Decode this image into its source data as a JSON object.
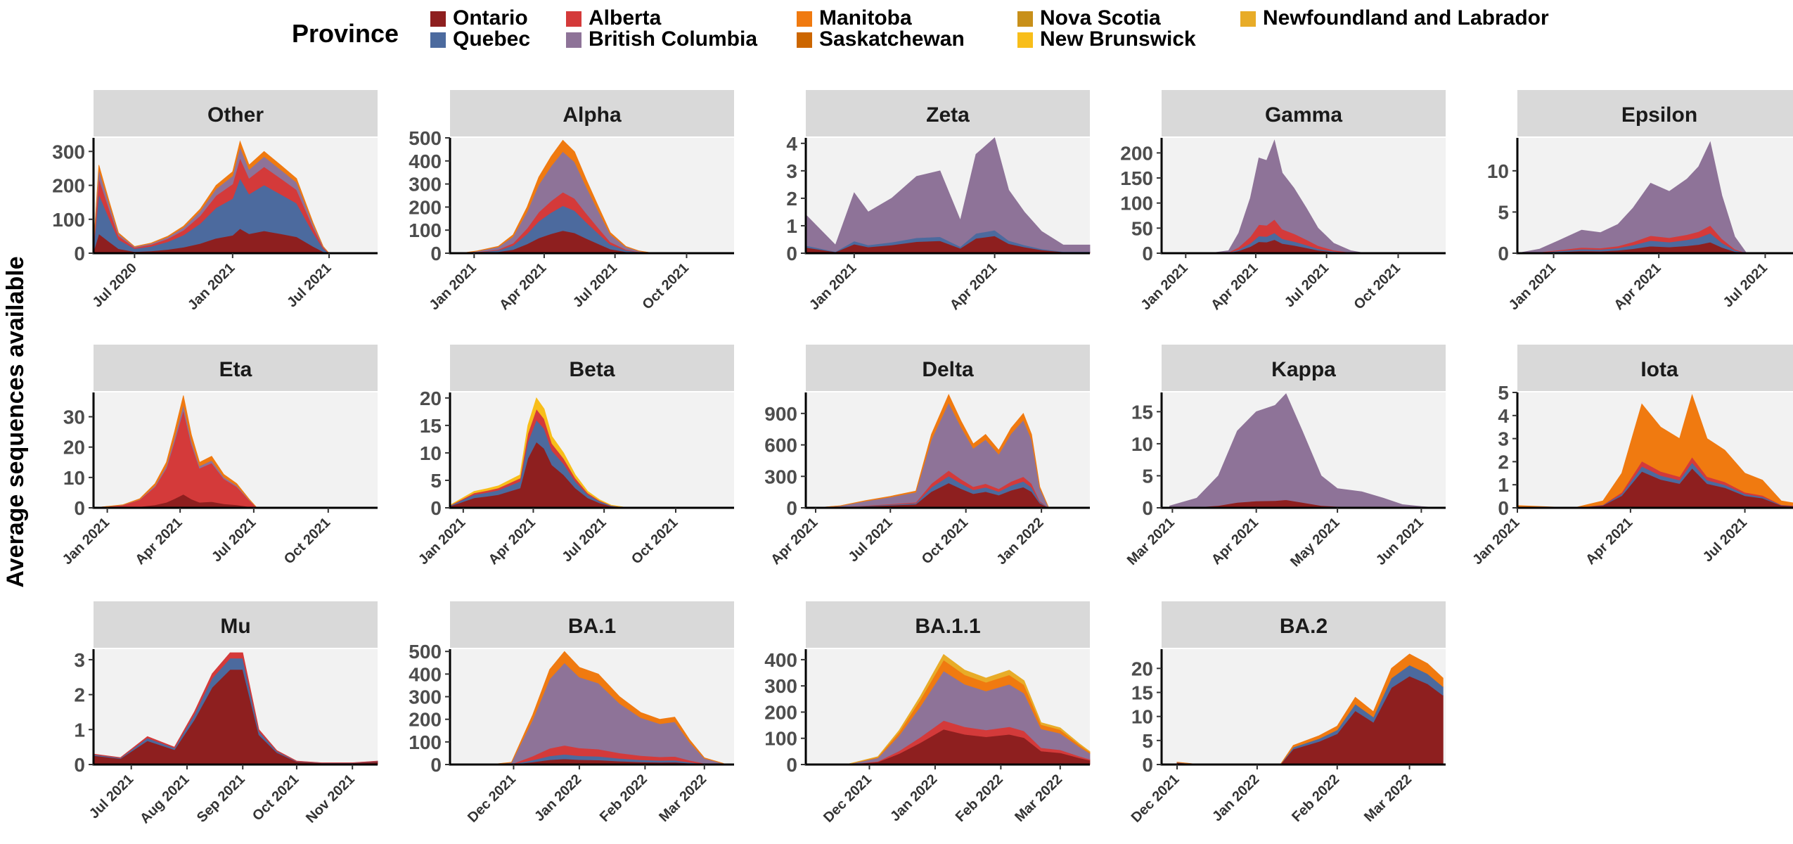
{
  "figure": {
    "ylabel": "Average sequences available",
    "legend_title": "Province",
    "legend_placement": "top",
    "provinces": [
      {
        "name": "Ontario",
        "color": "#8E1F1F"
      },
      {
        "name": "Quebec",
        "color": "#4C6A9E"
      },
      {
        "name": "Alberta",
        "color": "#D43A3A"
      },
      {
        "name": "British Columbia",
        "color": "#8E7398"
      },
      {
        "name": "Manitoba",
        "color": "#F07A10"
      },
      {
        "name": "Saskatchewan",
        "color": "#CC6600"
      },
      {
        "name": "Nova Scotia",
        "color": "#C8901A"
      },
      {
        "name": "New Brunswick",
        "color": "#F8BE1A"
      },
      {
        "name": "Newfoundland and Labrador",
        "color": "#E8AC28"
      }
    ]
  },
  "chart_data": [
    {
      "type": "area",
      "title": "Other",
      "x_start": "2020-04-15",
      "x_end": "2021-09-30",
      "ylim": [
        0,
        340
      ],
      "yticks": [
        0,
        100,
        200,
        300
      ],
      "xticks": [
        {
          "label": "Jul 2020",
          "date": "2020-07-01"
        },
        {
          "label": "Jan 2021",
          "date": "2021-01-01"
        },
        {
          "label": "Jul 2021",
          "date": "2021-07-01"
        }
      ],
      "dates": [
        "2020-04-15",
        "2020-04-25",
        "2020-05-15",
        "2020-06-01",
        "2020-07-01",
        "2020-08-01",
        "2020-09-01",
        "2020-10-01",
        "2020-11-01",
        "2020-12-01",
        "2021-01-01",
        "2021-01-15",
        "2021-02-01",
        "2021-03-01",
        "2021-04-01",
        "2021-05-01",
        "2021-06-01",
        "2021-06-20",
        "2021-07-01"
      ],
      "totals": [
        20,
        260,
        150,
        60,
        20,
        30,
        50,
        80,
        130,
        200,
        240,
        330,
        260,
        300,
        260,
        220,
        90,
        20,
        0
      ],
      "shares": {
        "Ontario": 0.22,
        "Quebec": 0.45,
        "Alberta": 0.18,
        "British Columbia": 0.1,
        "Manitoba": 0.05
      }
    },
    {
      "type": "area",
      "title": "Alpha",
      "x_start": "2020-12-01",
      "x_end": "2021-12-01",
      "ylim": [
        0,
        500
      ],
      "yticks": [
        0,
        100,
        200,
        300,
        400,
        500
      ],
      "xticks": [
        {
          "label": "Jan 2021",
          "date": "2021-01-01"
        },
        {
          "label": "Apr 2021",
          "date": "2021-04-01"
        },
        {
          "label": "Jul 2021",
          "date": "2021-07-01"
        },
        {
          "label": "Oct 2021",
          "date": "2021-10-01"
        }
      ],
      "dates": [
        "2020-12-15",
        "2021-01-05",
        "2021-02-01",
        "2021-02-20",
        "2021-03-10",
        "2021-03-25",
        "2021-04-10",
        "2021-04-25",
        "2021-05-10",
        "2021-05-25",
        "2021-06-10",
        "2021-06-25",
        "2021-07-15",
        "2021-08-01",
        "2021-08-20"
      ],
      "totals": [
        0,
        10,
        30,
        80,
        200,
        330,
        420,
        490,
        440,
        320,
        200,
        90,
        30,
        10,
        0
      ],
      "shares": {
        "Ontario": 0.2,
        "Quebec": 0.22,
        "Alberta": 0.12,
        "British Columbia": 0.36,
        "Manitoba": 0.1
      }
    },
    {
      "type": "area",
      "title": "Zeta",
      "x_start": "2020-12-01",
      "x_end": "2021-06-01",
      "ylim": [
        0,
        4.2
      ],
      "yticks": [
        0,
        1,
        2,
        3,
        4
      ],
      "xticks": [
        {
          "label": "Jan 2021",
          "date": "2021-01-01"
        },
        {
          "label": "Apr 2021",
          "date": "2021-04-01"
        }
      ],
      "dates": [
        "2020-12-01",
        "2020-12-20",
        "2021-01-01",
        "2021-01-10",
        "2021-01-25",
        "2021-02-10",
        "2021-02-25",
        "2021-03-10",
        "2021-03-20",
        "2021-04-01",
        "2021-04-10",
        "2021-04-20",
        "2021-05-01",
        "2021-05-15",
        "2021-06-01"
      ],
      "totals": [
        1.4,
        0.3,
        2.2,
        1.5,
        2.0,
        2.8,
        3.0,
        1.2,
        3.6,
        4.2,
        2.3,
        1.5,
        0.8,
        0.3,
        0.3
      ],
      "shares": {
        "Ontario": 0.15,
        "British Columbia": 0.8,
        "Quebec": 0.05
      }
    },
    {
      "type": "area",
      "title": "Gamma",
      "x_start": "2020-12-01",
      "x_end": "2021-12-01",
      "ylim": [
        0,
        230
      ],
      "yticks": [
        0,
        50,
        100,
        150,
        200
      ],
      "xticks": [
        {
          "label": "Jan 2021",
          "date": "2021-01-01"
        },
        {
          "label": "Apr 2021",
          "date": "2021-04-01"
        },
        {
          "label": "Jul 2021",
          "date": "2021-07-01"
        },
        {
          "label": "Oct 2021",
          "date": "2021-10-01"
        }
      ],
      "dates": [
        "2021-02-01",
        "2021-02-25",
        "2021-03-10",
        "2021-03-25",
        "2021-04-05",
        "2021-04-15",
        "2021-04-25",
        "2021-05-05",
        "2021-05-20",
        "2021-06-05",
        "2021-06-20",
        "2021-07-10",
        "2021-08-01",
        "2021-08-20"
      ],
      "totals": [
        0,
        5,
        40,
        110,
        190,
        185,
        225,
        160,
        130,
        90,
        50,
        20,
        5,
        0
      ],
      "shares": {
        "Ontario": 0.12,
        "Quebec": 0.06,
        "Alberta": 0.12,
        "British Columbia": 0.7
      }
    },
    {
      "type": "area",
      "title": "Epsilon",
      "x_start": "2020-12-01",
      "x_end": "2021-08-01",
      "ylim": [
        0,
        14
      ],
      "yticks": [
        0,
        5,
        10
      ],
      "xticks": [
        {
          "label": "Jan 2021",
          "date": "2021-01-01"
        },
        {
          "label": "Apr 2021",
          "date": "2021-04-01"
        },
        {
          "label": "Jul 2021",
          "date": "2021-07-01"
        }
      ],
      "dates": [
        "2020-12-01",
        "2020-12-20",
        "2021-01-05",
        "2021-01-25",
        "2021-02-10",
        "2021-02-25",
        "2021-03-10",
        "2021-03-25",
        "2021-04-10",
        "2021-04-25",
        "2021-05-05",
        "2021-05-15",
        "2021-05-25",
        "2021-06-05",
        "2021-06-15"
      ],
      "totals": [
        0,
        0.5,
        1.5,
        2.8,
        2.5,
        3.5,
        5.5,
        8.5,
        7.5,
        9.0,
        10.5,
        13.5,
        7.0,
        2.0,
        0
      ],
      "shares": {
        "Ontario": 0.1,
        "Quebec": 0.08,
        "Alberta": 0.07,
        "British Columbia": 0.75
      }
    },
    {
      "type": "area",
      "title": "Eta",
      "x_start": "2020-12-15",
      "x_end": "2021-12-01",
      "ylim": [
        0,
        38
      ],
      "yticks": [
        0,
        10,
        20,
        30
      ],
      "xticks": [
        {
          "label": "Jan 2021",
          "date": "2021-01-01"
        },
        {
          "label": "Apr 2021",
          "date": "2021-04-01"
        },
        {
          "label": "Jul 2021",
          "date": "2021-07-01"
        },
        {
          "label": "Oct 2021",
          "date": "2021-10-01"
        }
      ],
      "dates": [
        "2020-12-15",
        "2021-01-20",
        "2021-02-10",
        "2021-03-01",
        "2021-03-15",
        "2021-03-25",
        "2021-04-05",
        "2021-04-15",
        "2021-04-25",
        "2021-05-10",
        "2021-05-25",
        "2021-06-10",
        "2021-06-25",
        "2021-07-05"
      ],
      "totals": [
        0,
        1,
        3,
        8,
        15,
        25,
        37,
        24,
        15,
        17,
        11,
        8,
        3,
        0
      ],
      "shares": {
        "Ontario": 0.12,
        "Alberta": 0.75,
        "British Columbia": 0.05,
        "Manitoba": 0.08
      }
    },
    {
      "type": "area",
      "title": "Beta",
      "x_start": "2020-12-15",
      "x_end": "2021-12-15",
      "ylim": [
        0,
        21
      ],
      "yticks": [
        0,
        5,
        10,
        15,
        20
      ],
      "xticks": [
        {
          "label": "Jan 2021",
          "date": "2021-01-01"
        },
        {
          "label": "Apr 2021",
          "date": "2021-04-01"
        },
        {
          "label": "Jul 2021",
          "date": "2021-07-01"
        },
        {
          "label": "Oct 2021",
          "date": "2021-10-01"
        }
      ],
      "dates": [
        "2020-12-15",
        "2021-01-15",
        "2021-02-01",
        "2021-02-15",
        "2021-03-01",
        "2021-03-15",
        "2021-03-25",
        "2021-04-05",
        "2021-04-15",
        "2021-04-25",
        "2021-05-10",
        "2021-05-25",
        "2021-06-10",
        "2021-06-25",
        "2021-07-10",
        "2021-08-01"
      ],
      "totals": [
        0.5,
        3,
        3.5,
        4,
        5,
        6,
        15,
        20,
        18,
        13,
        10,
        6,
        3,
        1.5,
        0.5,
        0
      ],
      "shares": {
        "Ontario": 0.6,
        "Quebec": 0.2,
        "Alberta": 0.1,
        "New Brunswick": 0.1
      }
    },
    {
      "type": "area",
      "title": "Delta",
      "x_start": "2021-03-20",
      "x_end": "2022-03-01",
      "ylim": [
        0,
        1100
      ],
      "yticks": [
        0,
        300,
        600,
        900
      ],
      "xticks": [
        {
          "label": "Apr 2021",
          "date": "2021-04-01"
        },
        {
          "label": "Jul 2021",
          "date": "2021-07-01"
        },
        {
          "label": "Oct 2021",
          "date": "2021-10-01"
        },
        {
          "label": "Jan 2022",
          "date": "2022-01-01"
        }
      ],
      "dates": [
        "2021-04-01",
        "2021-05-01",
        "2021-06-01",
        "2021-07-01",
        "2021-08-01",
        "2021-08-20",
        "2021-09-10",
        "2021-09-25",
        "2021-10-10",
        "2021-10-25",
        "2021-11-10",
        "2021-11-25",
        "2021-12-10",
        "2021-12-20",
        "2021-12-30",
        "2022-01-10"
      ],
      "totals": [
        0,
        20,
        70,
        110,
        160,
        700,
        1080,
        830,
        610,
        700,
        550,
        760,
        900,
        700,
        200,
        0
      ],
      "shares": {
        "Ontario": 0.22,
        "Quebec": 0.06,
        "Alberta": 0.05,
        "British Columbia": 0.6,
        "Manitoba": 0.07
      }
    },
    {
      "type": "area",
      "title": "Kappa",
      "x_start": "2021-02-25",
      "x_end": "2021-06-10",
      "ylim": [
        0,
        18
      ],
      "yticks": [
        0,
        5,
        10,
        15
      ],
      "xticks": [
        {
          "label": "Mar 2021",
          "date": "2021-03-01"
        },
        {
          "label": "Apr 2021",
          "date": "2021-04-01"
        },
        {
          "label": "May 2021",
          "date": "2021-05-01"
        },
        {
          "label": "Jun 2021",
          "date": "2021-06-01"
        }
      ],
      "dates": [
        "2021-02-28",
        "2021-03-10",
        "2021-03-18",
        "2021-03-25",
        "2021-04-01",
        "2021-04-08",
        "2021-04-12",
        "2021-04-18",
        "2021-04-25",
        "2021-05-01",
        "2021-05-10",
        "2021-05-18",
        "2021-05-25",
        "2021-06-01",
        "2021-06-08"
      ],
      "totals": [
        0.3,
        1.5,
        5,
        12,
        15,
        16,
        17.8,
        12,
        5,
        3,
        2.5,
        1.5,
        0.5,
        0.2,
        0
      ],
      "shares": {
        "Ontario": 0.07,
        "British Columbia": 0.93
      }
    },
    {
      "type": "area",
      "title": "Iota",
      "x_start": "2021-01-01",
      "x_end": "2021-08-15",
      "ylim": [
        0,
        5
      ],
      "yticks": [
        0,
        1,
        2,
        3,
        4,
        5
      ],
      "xticks": [
        {
          "label": "Jan 2021",
          "date": "2021-01-01"
        },
        {
          "label": "Apr 2021",
          "date": "2021-04-01"
        },
        {
          "label": "Jul 2021",
          "date": "2021-07-01"
        }
      ],
      "dates": [
        "2021-01-01",
        "2021-02-15",
        "2021-03-10",
        "2021-03-25",
        "2021-04-10",
        "2021-04-25",
        "2021-05-10",
        "2021-05-20",
        "2021-06-01",
        "2021-06-15",
        "2021-07-01",
        "2021-07-15",
        "2021-07-30",
        "2021-08-10"
      ],
      "totals": [
        0.1,
        0,
        0.3,
        1.5,
        4.5,
        3.5,
        3.0,
        4.9,
        3.0,
        2.5,
        1.5,
        1.2,
        0.3,
        0.2
      ],
      "shares": {
        "Ontario": 0.35,
        "Quebec": 0.05,
        "Alberta": 0.05,
        "Manitoba": 0.55
      }
    },
    {
      "type": "area",
      "title": "Mu",
      "x_start": "2021-06-10",
      "x_end": "2021-11-15",
      "ylim": [
        0,
        3.3
      ],
      "yticks": [
        0,
        1,
        2,
        3
      ],
      "xticks": [
        {
          "label": "Jul 2021",
          "date": "2021-07-01"
        },
        {
          "label": "Aug 2021",
          "date": "2021-08-01"
        },
        {
          "label": "Sep 2021",
          "date": "2021-09-01"
        },
        {
          "label": "Oct 2021",
          "date": "2021-10-01"
        },
        {
          "label": "Nov 2021",
          "date": "2021-11-01"
        }
      ],
      "dates": [
        "2021-06-10",
        "2021-06-25",
        "2021-07-10",
        "2021-07-25",
        "2021-08-05",
        "2021-08-15",
        "2021-08-25",
        "2021-09-01",
        "2021-09-10",
        "2021-09-20",
        "2021-10-01",
        "2021-10-15",
        "2021-11-01",
        "2021-11-15"
      ],
      "totals": [
        0.3,
        0.2,
        0.8,
        0.5,
        1.5,
        2.6,
        3.2,
        3.2,
        1.0,
        0.4,
        0.1,
        0.05,
        0.05,
        0.1
      ],
      "shares": {
        "Ontario": 0.85,
        "Quebec": 0.1,
        "Alberta": 0.05
      }
    },
    {
      "type": "area",
      "title": "BA.1",
      "x_start": "2021-11-01",
      "x_end": "2022-03-15",
      "ylim": [
        0,
        510
      ],
      "yticks": [
        0,
        100,
        200,
        300,
        400,
        500
      ],
      "xticks": [
        {
          "label": "Dec 2021",
          "date": "2021-12-01"
        },
        {
          "label": "Jan 2022",
          "date": "2022-01-01"
        },
        {
          "label": "Feb 2022",
          "date": "2022-02-01"
        },
        {
          "label": "Mar 2022",
          "date": "2022-03-01"
        }
      ],
      "dates": [
        "2021-11-20",
        "2021-11-30",
        "2021-12-10",
        "2021-12-18",
        "2021-12-25",
        "2022-01-01",
        "2022-01-10",
        "2022-01-20",
        "2022-01-30",
        "2022-02-08",
        "2022-02-15",
        "2022-02-22",
        "2022-03-01",
        "2022-03-10"
      ],
      "totals": [
        0,
        10,
        220,
        420,
        500,
        430,
        400,
        300,
        230,
        200,
        210,
        110,
        30,
        5
      ],
      "shares": {
        "Ontario": 0.05,
        "Quebec": 0.04,
        "Alberta": 0.08,
        "British Columbia": 0.73,
        "Manitoba": 0.1
      }
    },
    {
      "type": "area",
      "title": "BA.1.1",
      "x_start": "2021-11-01",
      "x_end": "2022-03-15",
      "ylim": [
        0,
        440
      ],
      "yticks": [
        0,
        100,
        200,
        300,
        400
      ],
      "xticks": [
        {
          "label": "Dec 2021",
          "date": "2021-12-01"
        },
        {
          "label": "Jan 2022",
          "date": "2022-01-01"
        },
        {
          "label": "Feb 2022",
          "date": "2022-02-01"
        },
        {
          "label": "Mar 2022",
          "date": "2022-03-01"
        }
      ],
      "dates": [
        "2021-11-20",
        "2021-12-05",
        "2021-12-15",
        "2021-12-25",
        "2022-01-05",
        "2022-01-15",
        "2022-01-25",
        "2022-02-05",
        "2022-02-12",
        "2022-02-20",
        "2022-03-01",
        "2022-03-10",
        "2022-03-15"
      ],
      "totals": [
        0,
        30,
        130,
        260,
        420,
        360,
        330,
        360,
        320,
        160,
        140,
        80,
        50
      ],
      "shares": {
        "Ontario": 0.32,
        "Alberta": 0.08,
        "British Columbia": 0.45,
        "Manitoba": 0.1,
        "Newfoundland and Labrador": 0.05
      }
    },
    {
      "type": "area",
      "title": "BA.2",
      "x_start": "2021-11-25",
      "x_end": "2022-03-15",
      "ylim": [
        0,
        24
      ],
      "yticks": [
        0,
        5,
        10,
        15,
        20
      ],
      "xticks": [
        {
          "label": "Dec 2021",
          "date": "2021-12-01"
        },
        {
          "label": "Jan 2022",
          "date": "2022-01-01"
        },
        {
          "label": "Feb 2022",
          "date": "2022-02-01"
        },
        {
          "label": "Mar 2022",
          "date": "2022-03-01"
        }
      ],
      "dates": [
        "2021-12-01",
        "2021-12-10",
        "2022-01-10",
        "2022-01-15",
        "2022-01-25",
        "2022-02-01",
        "2022-02-08",
        "2022-02-15",
        "2022-02-22",
        "2022-03-01",
        "2022-03-08",
        "2022-03-14"
      ],
      "totals": [
        0.5,
        0,
        0,
        4,
        6,
        8,
        14,
        11,
        20,
        23,
        21,
        18
      ],
      "shares": {
        "Ontario": 0.8,
        "Quebec": 0.1,
        "Manitoba": 0.1
      }
    }
  ]
}
